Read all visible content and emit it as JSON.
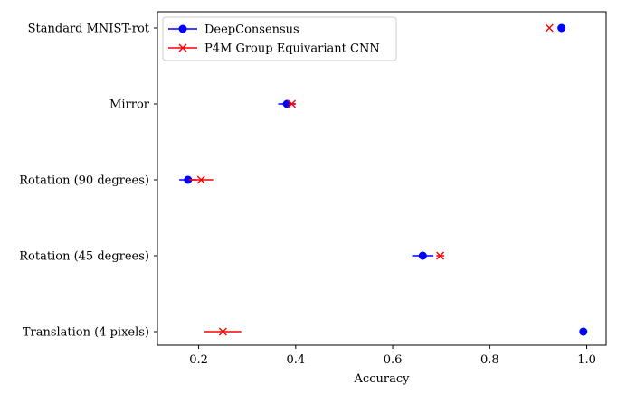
{
  "chart_data": {
    "type": "scatter",
    "orientation": "horizontal",
    "title": "",
    "xlabel": "Accuracy",
    "ylabel": "",
    "xlim": [
      0.115,
      1.04
    ],
    "xticks": [
      0.2,
      0.4,
      0.6,
      0.8,
      1.0
    ],
    "xtick_labels": [
      "0.2",
      "0.4",
      "0.6",
      "0.8",
      "1.0"
    ],
    "categories": [
      "Standard MNIST-rot",
      "Mirror",
      "Rotation (90 degrees)",
      "Rotation (45 degrees)",
      "Translation (4 pixels)"
    ],
    "legend_position": "top-left",
    "grid": false,
    "series": [
      {
        "name": "DeepConsensus",
        "color": "#0000ff",
        "marker": "circle",
        "values": [
          0.948,
          0.382,
          0.178,
          0.662,
          0.993
        ],
        "errors": [
          0.0,
          0.018,
          0.018,
          0.022,
          0.0
        ]
      },
      {
        "name": "P4M Group Equivariant CNN",
        "color": "#ff0000",
        "marker": "x",
        "values": [
          0.923,
          0.392,
          0.205,
          0.698,
          0.25
        ],
        "errors": [
          0.0,
          0.006,
          0.025,
          0.008,
          0.038
        ]
      }
    ]
  }
}
